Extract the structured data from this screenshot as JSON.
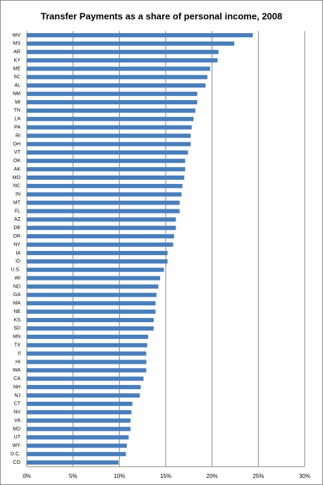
{
  "chart_data": {
    "type": "hbar",
    "title": "Transfer Payments as a share of personal income, 2008",
    "categories": [
      "WV",
      "MS",
      "AR",
      "KY",
      "ME",
      "SC",
      "AL",
      "NM",
      "MI",
      "TN",
      "LA",
      "PA",
      "RI",
      "OH",
      "VT",
      "OK",
      "AK",
      "MO",
      "NC",
      "IN",
      "MT",
      "FL",
      "AZ",
      "DE",
      "OR",
      "NY",
      "IA",
      "ID",
      "U.S.",
      "WI",
      "ND",
      "GA",
      "MA",
      "NE",
      "KS",
      "SD",
      "MN",
      "TX",
      "Il",
      "HI",
      "WA",
      "CA",
      "NH",
      "NJ",
      "CT",
      "NV",
      "VA",
      "MD",
      "UT",
      "WY",
      "D.C.",
      "CO"
    ],
    "values": [
      24.4,
      22.4,
      20.7,
      20.6,
      19.8,
      19.5,
      19.3,
      18.4,
      18.4,
      18.2,
      18.0,
      17.8,
      17.7,
      17.7,
      17.4,
      17.1,
      17.1,
      17.0,
      16.8,
      16.7,
      16.5,
      16.5,
      16.1,
      16.1,
      15.9,
      15.8,
      15.2,
      15.2,
      14.8,
      14.4,
      14.2,
      14.0,
      13.9,
      13.9,
      13.7,
      13.7,
      13.1,
      13.0,
      12.9,
      12.9,
      12.9,
      12.6,
      12.3,
      12.2,
      11.4,
      11.3,
      11.2,
      11.2,
      11.0,
      10.8,
      10.7,
      9.9
    ],
    "color": "#4a7ebb",
    "xlim": [
      0,
      30
    ],
    "xticks": [
      {
        "value": 0,
        "label": "0%"
      },
      {
        "value": 5,
        "label": "5%"
      },
      {
        "value": 10,
        "label": "10%"
      },
      {
        "value": 15,
        "label": "15%"
      },
      {
        "value": 20,
        "label": "20%"
      },
      {
        "value": 25,
        "label": "25%"
      },
      {
        "value": 30,
        "label": "30%"
      }
    ],
    "grid": true
  }
}
